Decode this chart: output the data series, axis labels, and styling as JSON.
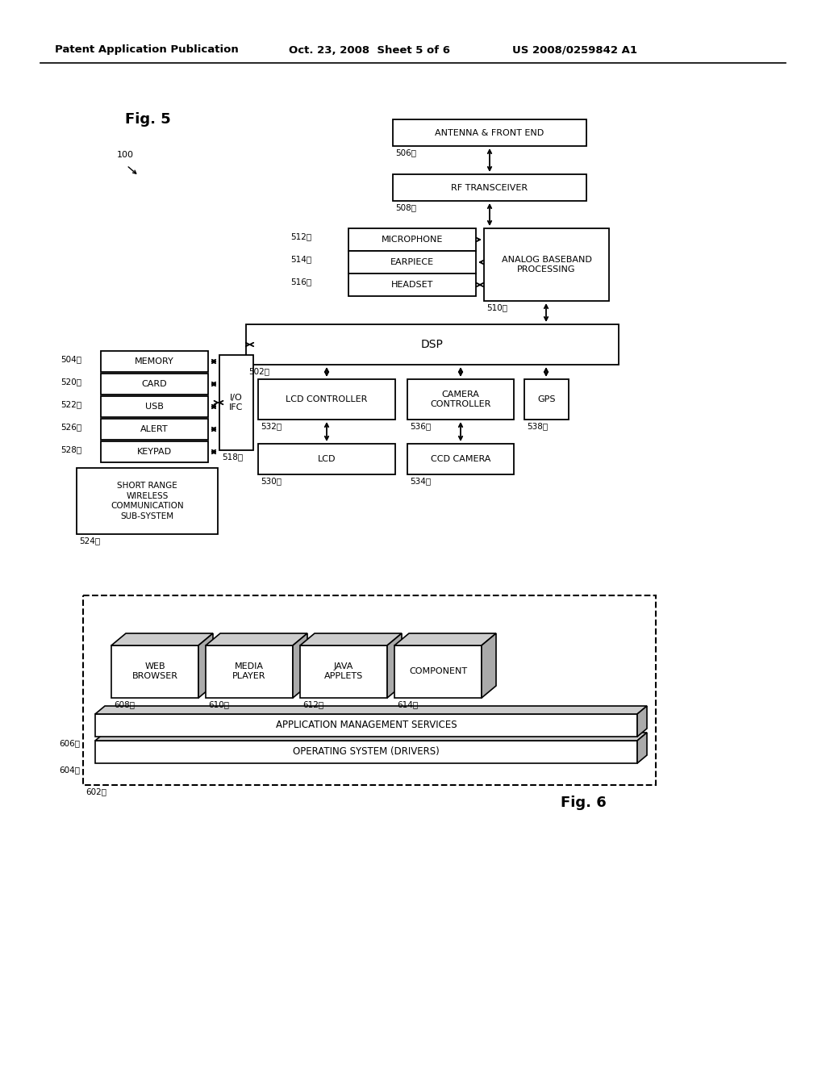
{
  "bg_color": "#ffffff",
  "header_left": "Patent Application Publication",
  "header_mid": "Oct. 23, 2008  Sheet 5 of 6",
  "header_right": "US 2008/0259842 A1"
}
